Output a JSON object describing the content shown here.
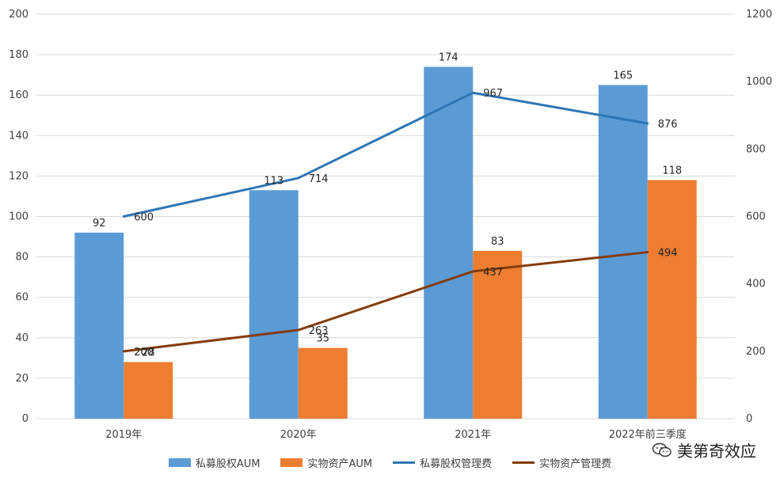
{
  "chart_data": {
    "type": "bar",
    "categories": [
      "2019年",
      "2020年",
      "2021年",
      "2022年前三季度"
    ],
    "series": [
      {
        "name": "私募股权AUM",
        "type": "bar",
        "axis": "left",
        "color": "#5b9bd5",
        "values": [
          92,
          113,
          174,
          165
        ]
      },
      {
        "name": "实物资产AUM",
        "type": "bar",
        "axis": "left",
        "color": "#ed7d31",
        "values": [
          28,
          35,
          83,
          118
        ]
      },
      {
        "name": "私募股权管理费",
        "type": "line",
        "axis": "right",
        "color": "#2e75b6",
        "values": [
          600,
          714,
          967,
          876
        ]
      },
      {
        "name": "实物资产管理费",
        "type": "line",
        "axis": "right",
        "color": "#843c0c",
        "values": [
          200,
          263,
          437,
          494
        ]
      }
    ],
    "y_left": {
      "min": 0,
      "max": 200,
      "ticks": [
        0,
        20,
        40,
        60,
        80,
        100,
        120,
        140,
        160,
        180,
        200
      ]
    },
    "y_right": {
      "min": 0,
      "max": 1200,
      "ticks": [
        0,
        200,
        400,
        600,
        800,
        1000,
        1200
      ]
    },
    "grid": true,
    "legend_position": "bottom"
  },
  "watermark": {
    "text": "美第奇效应"
  }
}
